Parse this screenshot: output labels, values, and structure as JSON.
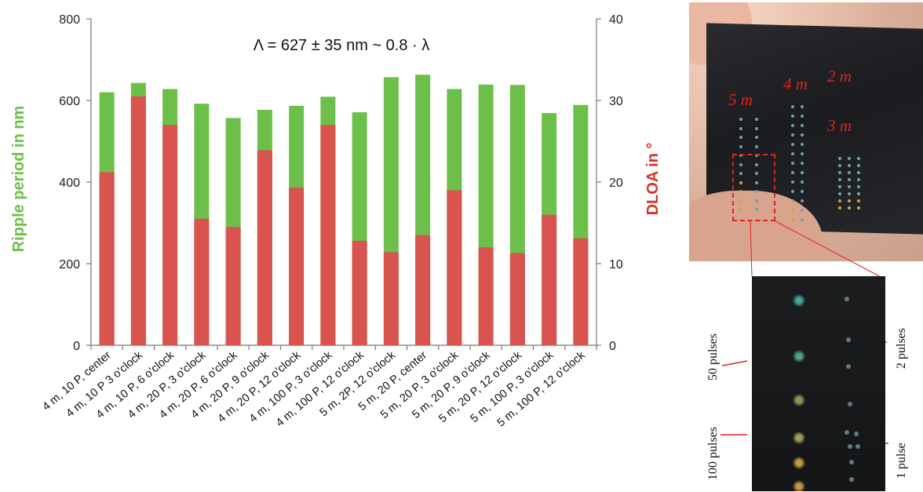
{
  "chart_data": {
    "type": "bar",
    "stacked": true,
    "categories": [
      "4 m, 10 P, center",
      "4 m, 10 P 3 o'clock",
      "4 m, 10 P, 6 o'clock",
      "4 m, 20 P, 3 o'clock",
      "4 m, 20 P, 6 o'clock",
      "4 m, 20 P, 9 o'clock",
      "4 m, 20 P, 12 o'clock",
      "4 m, 100 P, 3 o'clock",
      "4 m, 100 P, 12 o'clock",
      "5 m, 2P, 12 o'clock",
      "5 m, 20 P, center",
      "5 m, 20 P, 3 o'clock",
      "5 m, 20 P, 9 o'clock",
      "5 m, 20 P, 12 o'clock",
      "5 m, 100 P, 3 o'clock",
      "5 m, 100 P, 12 o'clock"
    ],
    "series": [
      {
        "name": "Ripple period in nm",
        "axis": "left",
        "color": "#6cc04a",
        "values": [
          620,
          643,
          628,
          592,
          557,
          577,
          587,
          609,
          571,
          657,
          663,
          628,
          639,
          638,
          569,
          589
        ]
      },
      {
        "name": "DLOA in °",
        "axis": "right",
        "color": "#d9534f",
        "values": [
          21.2,
          30.5,
          27.0,
          15.5,
          14.5,
          23.9,
          19.3,
          27.0,
          12.8,
          11.4,
          13.5,
          19.0,
          12.0,
          11.3,
          16.0,
          13.1
        ]
      }
    ],
    "ylabel": "Ripple period in nm",
    "y2label": "DLOA in °",
    "ylim": [
      0,
      800
    ],
    "y2lim": [
      0,
      40
    ],
    "yticks": [
      0,
      200,
      400,
      600,
      800
    ],
    "y2ticks": [
      0,
      10,
      20,
      30,
      40
    ],
    "annotation": "Λ = 627 ± 35 nm  ~ 0.8 · λ",
    "grid": false,
    "legend": "none"
  },
  "photo": {
    "labels": [
      "2 m",
      "4 m",
      "5 m",
      "3 m"
    ],
    "pulse_labels": [
      "50 pulses",
      "100 pulses",
      "2 pulses",
      "1 pulse"
    ]
  },
  "colors": {
    "green": "#6cc04a",
    "red": "#d9534f",
    "red_text": "#d9312b",
    "photo_label": "#e0231c"
  }
}
